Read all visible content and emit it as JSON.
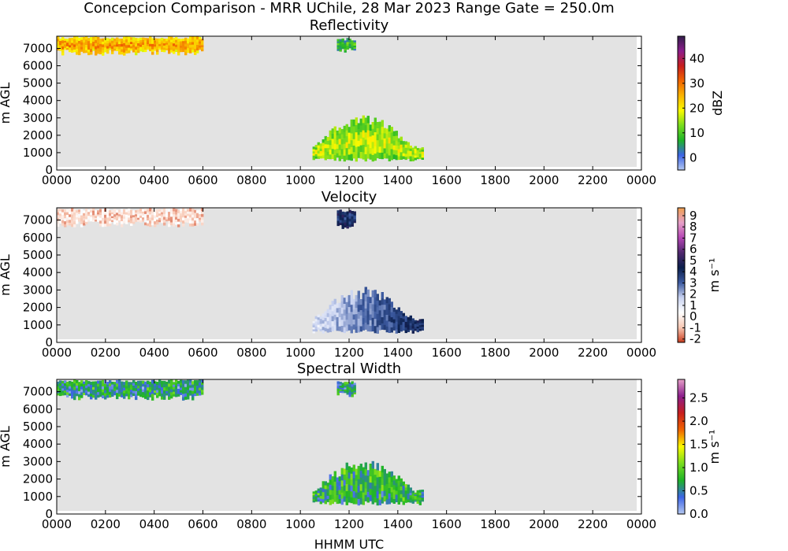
{
  "figure": {
    "suptitle": "Concepcion Comparison - MRR UChile, 28 Mar 2023 Range Gate = 250.0m",
    "xlabel": "HHMM UTC"
  },
  "chart_data": [
    {
      "type": "heatmap",
      "title": "Reflectivity",
      "ylabel": "m AGL",
      "colorbar_label": "dBZ",
      "x_tick_labels": [
        "0000",
        "0200",
        "0400",
        "0600",
        "0800",
        "1000",
        "1200",
        "1400",
        "1600",
        "1800",
        "2000",
        "2200",
        "0000"
      ],
      "y_ticks": [
        0,
        1000,
        2000,
        3000,
        4000,
        5000,
        6000,
        7000
      ],
      "ylim": [
        0,
        7700
      ],
      "xlim_hours": [
        0,
        24
      ],
      "colorbar_ticks": [
        0,
        10,
        20,
        30,
        40
      ],
      "colorbar_range": [
        -5,
        49
      ],
      "colormap": "reflectivity",
      "background_color": "#e3e3e3",
      "echo_regions": [
        {
          "start": "0000",
          "end": "0600",
          "base_m": 6600,
          "top_m": 7700,
          "typical_value": 25
        },
        {
          "start": "1130",
          "end": "1215",
          "base_m": 6700,
          "top_m": 7600,
          "typical_value": 8
        },
        {
          "start": "1030",
          "end": "1500",
          "base_m": 500,
          "top_m": 3200,
          "typical_value": 15
        }
      ]
    },
    {
      "type": "heatmap",
      "title": "Velocity",
      "ylabel": "m AGL",
      "colorbar_label": "m s⁻¹",
      "x_tick_labels": [
        "0000",
        "0200",
        "0400",
        "0600",
        "0800",
        "1000",
        "1200",
        "1400",
        "1600",
        "1800",
        "2000",
        "2200",
        "0000"
      ],
      "y_ticks": [
        0,
        1000,
        2000,
        3000,
        4000,
        5000,
        6000,
        7000
      ],
      "ylim": [
        0,
        7700
      ],
      "xlim_hours": [
        0,
        24
      ],
      "colorbar_ticks": [
        -2,
        -1,
        0,
        1,
        2,
        3,
        4,
        5,
        6,
        7,
        8,
        9
      ],
      "colorbar_range": [
        -2.3,
        9.7
      ],
      "colormap": "velocity",
      "background_color": "#e3e3e3",
      "echo_regions": [
        {
          "start": "0000",
          "end": "0600",
          "base_m": 6600,
          "top_m": 7700,
          "typical_value": -0.5
        },
        {
          "start": "1130",
          "end": "1215",
          "base_m": 6500,
          "top_m": 7600,
          "typical_value": 4
        },
        {
          "start": "1030",
          "end": "1500",
          "base_m": 500,
          "top_m": 3200,
          "typical_value": 2.5
        }
      ]
    },
    {
      "type": "heatmap",
      "title": "Spectral Width",
      "ylabel": "m AGL",
      "colorbar_label": "m s⁻¹",
      "x_tick_labels": [
        "0000",
        "0200",
        "0400",
        "0600",
        "0800",
        "1000",
        "1200",
        "1400",
        "1600",
        "1800",
        "2000",
        "2200",
        "0000"
      ],
      "y_ticks": [
        0,
        1000,
        2000,
        3000,
        4000,
        5000,
        6000,
        7000
      ],
      "ylim": [
        0,
        7700
      ],
      "xlim_hours": [
        0,
        24
      ],
      "colorbar_ticks": [
        "0.0",
        "0.5",
        "1.0",
        "1.5",
        "2.0",
        "2.5"
      ],
      "colorbar_range": [
        0,
        2.9
      ],
      "colormap": "spectral_width",
      "background_color": "#e3e3e3",
      "echo_regions": [
        {
          "start": "0000",
          "end": "0600",
          "base_m": 6500,
          "top_m": 7700,
          "typical_value": 0.6
        },
        {
          "start": "1130",
          "end": "1215",
          "base_m": 6700,
          "top_m": 7600,
          "typical_value": 0.5
        },
        {
          "start": "1030",
          "end": "1500",
          "base_m": 500,
          "top_m": 3200,
          "typical_value": 0.7
        }
      ]
    }
  ],
  "colormaps": {
    "reflectivity": [
      "#b4c8f0",
      "#3c64e6",
      "#1eb428",
      "#78dc1e",
      "#fafa00",
      "#fab400",
      "#f06400",
      "#c81e1e",
      "#8c1e8c",
      "#321e4b"
    ],
    "velocity": [
      "#c83c1e",
      "#f8c8b4",
      "#ffffff",
      "#c8d2f0",
      "#3c5aa0",
      "#0a1e4b",
      "#50286e",
      "#b446b4",
      "#e6a0c8",
      "#f0a050"
    ],
    "spectral_width": [
      "#b4c8f0",
      "#3c64e6",
      "#1eb428",
      "#78dc1e",
      "#fafa00",
      "#f06400",
      "#c81e1e",
      "#8c1e8c",
      "#e6a0c8"
    ]
  }
}
